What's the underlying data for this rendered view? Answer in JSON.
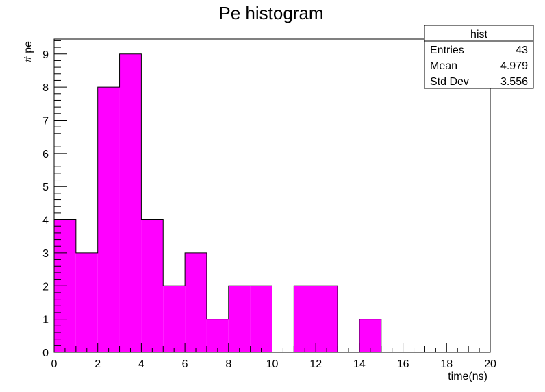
{
  "chart_data": {
    "type": "bar",
    "title": "Pe histogram",
    "xlabel": "time(ns)",
    "ylabel": "# pe",
    "xlim": [
      0,
      20
    ],
    "ylim": [
      0,
      9.45
    ],
    "bin_width": 1,
    "bins": [
      {
        "x0": 0,
        "x1": 1,
        "value": 4
      },
      {
        "x0": 1,
        "x1": 2,
        "value": 3
      },
      {
        "x0": 2,
        "x1": 3,
        "value": 8
      },
      {
        "x0": 3,
        "x1": 4,
        "value": 9
      },
      {
        "x0": 4,
        "x1": 5,
        "value": 4
      },
      {
        "x0": 5,
        "x1": 6,
        "value": 2
      },
      {
        "x0": 6,
        "x1": 7,
        "value": 3
      },
      {
        "x0": 7,
        "x1": 8,
        "value": 1
      },
      {
        "x0": 8,
        "x1": 9,
        "value": 2
      },
      {
        "x0": 9,
        "x1": 10,
        "value": 2
      },
      {
        "x0": 10,
        "x1": 11,
        "value": 0
      },
      {
        "x0": 11,
        "x1": 12,
        "value": 2
      },
      {
        "x0": 12,
        "x1": 13,
        "value": 2
      },
      {
        "x0": 13,
        "x1": 14,
        "value": 0
      },
      {
        "x0": 14,
        "x1": 15,
        "value": 1
      },
      {
        "x0": 15,
        "x1": 16,
        "value": 0
      },
      {
        "x0": 16,
        "x1": 17,
        "value": 0
      },
      {
        "x0": 17,
        "x1": 18,
        "value": 0
      },
      {
        "x0": 18,
        "x1": 19,
        "value": 0
      },
      {
        "x0": 19,
        "x1": 20,
        "value": 0
      }
    ],
    "x_ticks": [
      "0",
      "2",
      "4",
      "6",
      "8",
      "10",
      "12",
      "14",
      "16",
      "18",
      "20"
    ],
    "y_ticks": [
      "0",
      "1",
      "2",
      "3",
      "4",
      "5",
      "6",
      "7",
      "8",
      "9"
    ],
    "fill_color": "#ff00ff",
    "edge_color": "#000000",
    "grid": false,
    "stats_box": {
      "title": "hist",
      "position": "top-right",
      "rows": [
        {
          "label": "Entries",
          "value": "43"
        },
        {
          "label": "Mean",
          "value": "4.979"
        },
        {
          "label": "Std Dev",
          "value": "3.556"
        }
      ]
    }
  }
}
